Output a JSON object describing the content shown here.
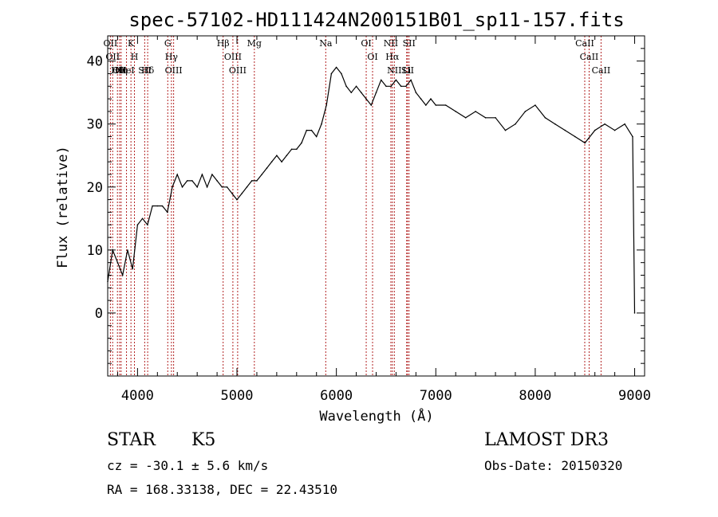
{
  "chart_data": {
    "type": "line",
    "title": "spec-57102-HD111424N200151B01_sp11-157.fits",
    "xlabel": "Wavelength (Å)",
    "ylabel": "Flux (relative)",
    "xlim": [
      3700,
      9100
    ],
    "ylim": [
      -10,
      44
    ],
    "xticks": [
      4000,
      5000,
      6000,
      7000,
      8000,
      9000
    ],
    "yticks": [
      0,
      10,
      20,
      30,
      40
    ],
    "series": [
      {
        "name": "flux",
        "x": [
          3700,
          3750,
          3800,
          3850,
          3900,
          3950,
          4000,
          4050,
          4100,
          4150,
          4200,
          4250,
          4300,
          4350,
          4400,
          4450,
          4500,
          4550,
          4600,
          4650,
          4700,
          4750,
          4800,
          4850,
          4900,
          4950,
          5000,
          5050,
          5100,
          5150,
          5200,
          5250,
          5300,
          5350,
          5400,
          5450,
          5500,
          5550,
          5600,
          5650,
          5700,
          5750,
          5800,
          5850,
          5900,
          5950,
          6000,
          6050,
          6100,
          6150,
          6200,
          6250,
          6300,
          6350,
          6400,
          6450,
          6500,
          6550,
          6600,
          6650,
          6700,
          6750,
          6800,
          6850,
          6900,
          6950,
          7000,
          7100,
          7200,
          7300,
          7400,
          7500,
          7600,
          7700,
          7800,
          7900,
          8000,
          8100,
          8200,
          8300,
          8400,
          8500,
          8600,
          8700,
          8800,
          8900,
          8980,
          9000
        ],
        "y": [
          5,
          10,
          8,
          6,
          10,
          7,
          14,
          15,
          14,
          17,
          17,
          17,
          16,
          20,
          22,
          20,
          21,
          21,
          20,
          22,
          20,
          22,
          21,
          20,
          20,
          19,
          18,
          19,
          20,
          21,
          21,
          22,
          23,
          24,
          25,
          24,
          25,
          26,
          26,
          27,
          29,
          29,
          28,
          30,
          33,
          38,
          39,
          38,
          36,
          35,
          36,
          35,
          34,
          33,
          35,
          37,
          36,
          36,
          37,
          36,
          36,
          37,
          35,
          34,
          33,
          34,
          33,
          33,
          32,
          31,
          32,
          31,
          31,
          29,
          30,
          32,
          33,
          31,
          30,
          29,
          28,
          27,
          29,
          30,
          29,
          30,
          28,
          0
        ]
      }
    ],
    "lines": [
      {
        "wl": 3727,
        "label": "OII"
      },
      {
        "wl": 3750,
        "label": "OII"
      },
      {
        "wl": 3798,
        "label": "Hθ"
      },
      {
        "wl": 3820,
        "label": "OII"
      },
      {
        "wl": 3835,
        "label": "Hη"
      },
      {
        "wl": 3889,
        "label": "HeI"
      },
      {
        "wl": 3934,
        "label": "K"
      },
      {
        "wl": 3969,
        "label": "H"
      },
      {
        "wl": 4072,
        "label": "SII"
      },
      {
        "wl": 4102,
        "label": "Hδ"
      },
      {
        "wl": 4304,
        "label": "G"
      },
      {
        "wl": 4341,
        "label": "Hγ"
      },
      {
        "wl": 4363,
        "label": "OIII"
      },
      {
        "wl": 4861,
        "label": "Hβ"
      },
      {
        "wl": 4959,
        "label": "OIII"
      },
      {
        "wl": 5007,
        "label": "OIII"
      },
      {
        "wl": 5175,
        "label": "Mg"
      },
      {
        "wl": 5893,
        "label": "Na"
      },
      {
        "wl": 6300,
        "label": "OI"
      },
      {
        "wl": 6364,
        "label": "OI"
      },
      {
        "wl": 6548,
        "label": "NII"
      },
      {
        "wl": 6563,
        "label": "Hα"
      },
      {
        "wl": 6583,
        "label": "NII"
      },
      {
        "wl": 6707,
        "label": "Li"
      },
      {
        "wl": 6716,
        "label": "SII"
      },
      {
        "wl": 6731,
        "label": "SII"
      },
      {
        "wl": 8498,
        "label": "CaII"
      },
      {
        "wl": 8542,
        "label": "CaII"
      },
      {
        "wl": 8662,
        "label": "CaII"
      }
    ]
  },
  "info": {
    "object_type": "STAR",
    "subclass": "K5",
    "survey": "LAMOST DR3",
    "cz": "cz = -30.1 ± 5.6 km/s",
    "obs_date": "Obs-Date: 20150320",
    "coords": "RA = 168.33138, DEC =  22.43510"
  },
  "colors": {
    "line_marker": "#b22222",
    "spectrum": "#000000"
  }
}
